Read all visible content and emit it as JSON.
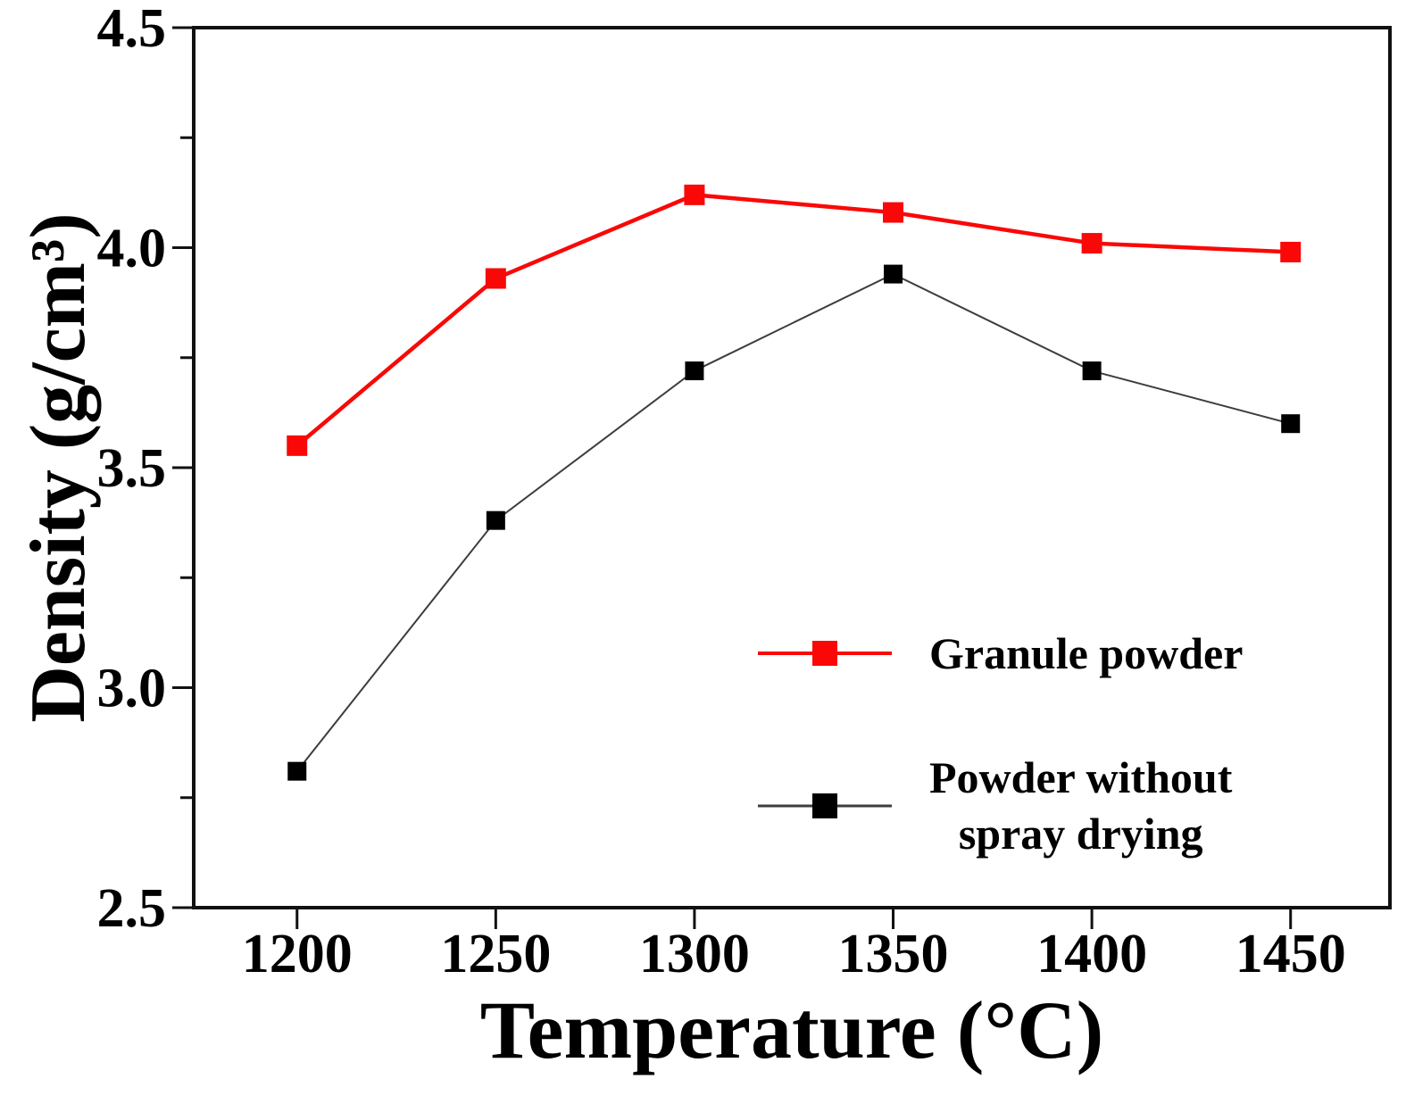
{
  "figure": {
    "background": "#ffffff",
    "text_color": "#000000",
    "frame_color": "#111111"
  },
  "chart_data": {
    "type": "line",
    "title": "",
    "xlabel": "Temperature (°C)",
    "ylabel": "Density (g/cm³)",
    "x": [
      1200,
      1250,
      1300,
      1350,
      1400,
      1450
    ],
    "x_tick_labels": [
      "1200",
      "1250",
      "1300",
      "1350",
      "1400",
      "1450"
    ],
    "y_tick_labels": [
      "4.5",
      "4.0",
      "3.5",
      "3.0",
      "2.5"
    ],
    "y_minor_ticks": [
      4.25,
      3.75,
      3.25,
      2.75
    ],
    "xlim": [
      1174,
      1475
    ],
    "ylim": [
      2.5,
      4.5
    ],
    "grid": false,
    "legend_position": "inside-right-center",
    "series": [
      {
        "name": "Granule powder",
        "marker": "square",
        "color": "#fa0808",
        "line_color": "#fa0808",
        "line_width": 4.5,
        "marker_size": 23,
        "values": [
          3.55,
          3.93,
          4.12,
          4.08,
          4.01,
          3.99
        ]
      },
      {
        "name": "Powder without spray drying",
        "marker": "square",
        "color": "#000000",
        "line_color": "#3d3d3d",
        "line_width": 2,
        "marker_size": 21,
        "values": [
          2.81,
          3.38,
          3.72,
          3.94,
          3.72,
          3.6
        ]
      }
    ]
  },
  "legend": {
    "entries": [
      {
        "label": "Granule powder",
        "line_color": "#fa0808",
        "marker_color": "#fa0808"
      },
      {
        "label": "Powder without\nspray drying",
        "line_color": "#3d3d3d",
        "marker_color": "#000000"
      }
    ]
  }
}
